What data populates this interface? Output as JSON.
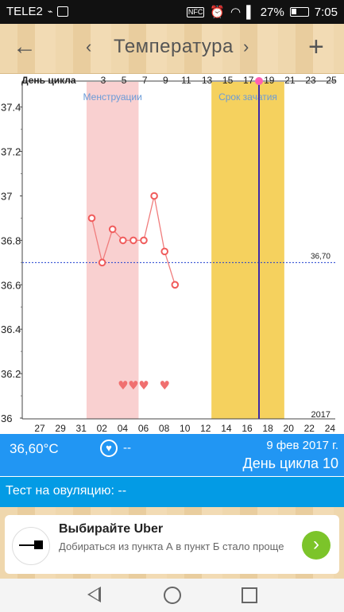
{
  "status_bar": {
    "carrier": "TELE2",
    "battery": "27%",
    "time": "7:05",
    "nfc": "NFC"
  },
  "toolbar": {
    "title": "Температура",
    "back_icon": "arrow-left-icon",
    "prev": "‹",
    "next": "›",
    "add": "+"
  },
  "chart": {
    "top_row_label": "День цикла",
    "cycle_days": [
      "3",
      "5",
      "7",
      "9",
      "11",
      "13",
      "15",
      "17",
      "19",
      "21",
      "23",
      "25"
    ],
    "bottom_dates": [
      "27",
      "29",
      "31",
      "02",
      "04",
      "06",
      "08",
      "10",
      "12",
      "14",
      "16",
      "18",
      "20",
      "22",
      "24"
    ],
    "year": "2017",
    "y_ticks": [
      "37.4",
      "37.2",
      "37",
      "36.8",
      "36.6",
      "36.4",
      "36.2",
      "36"
    ],
    "menstruation_label": "Менструации",
    "conception_label": "Срок зачатия",
    "coverline_label": "36,70"
  },
  "chart_data": {
    "type": "line",
    "series": [
      {
        "values": [
          {
            "date": "01",
            "y": 36.9
          },
          {
            "date": "02",
            "y": 36.7
          },
          {
            "date": "03",
            "y": 36.85
          },
          {
            "date": "04",
            "y": 36.8
          },
          {
            "date": "05",
            "y": 36.8
          },
          {
            "date": "06",
            "y": 36.8
          },
          {
            "date": "07",
            "y": 37.0
          },
          {
            "date": "08",
            "y": 36.75
          },
          {
            "date": "09",
            "y": 36.6
          }
        ]
      }
    ],
    "ylim": [
      36.0,
      37.5
    ],
    "coverline": 36.7,
    "menstruation_range": [
      "01",
      "05"
    ],
    "conception_range": [
      "13",
      "19"
    ],
    "today": "09",
    "heart_dates": [
      "04",
      "05",
      "06",
      "08"
    ],
    "colors": {
      "line": "#f07d7d",
      "menstruation": "#f9d0d0",
      "conception": "#f5d15e",
      "coverline": "#1f3fcf",
      "today": "#3d2aa8"
    }
  },
  "info": {
    "temperature": "36,60°C",
    "heart_value": "--",
    "date": "9 фев 2017 г.",
    "cycle_day": "День цикла 10"
  },
  "ovulation": {
    "label": "Тест на овуляцию: --"
  },
  "ad": {
    "title": "Выбирайте Uber",
    "description": "Добираться из пункта А в пункт Б стало проще",
    "go": "›"
  }
}
